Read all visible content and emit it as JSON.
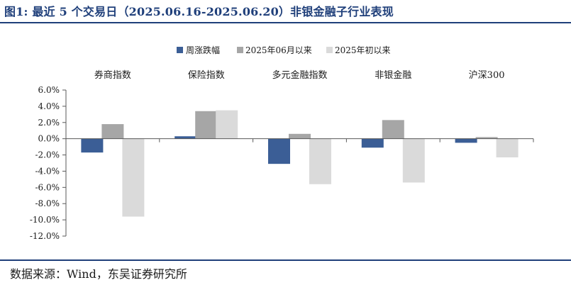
{
  "title": "图1:  最近 5 个交易日（2025.06.16-2025.06.20）非银金融子行业表现",
  "source": "数据来源：Wind，东吴证券研究所",
  "chart_data": {
    "type": "bar",
    "categories": [
      "券商指数",
      "保险指数",
      "多元金融指数",
      "非银金融",
      "沪深300"
    ],
    "series": [
      {
        "name": "周涨跌幅",
        "color": "#3b5e96",
        "values": [
          -1.7,
          0.3,
          -3.1,
          -1.1,
          -0.5
        ]
      },
      {
        "name": "2025年06月以来",
        "color": "#a6a6a6",
        "values": [
          1.8,
          3.4,
          0.6,
          2.3,
          0.2
        ]
      },
      {
        "name": "2025年初以来",
        "color": "#dadada",
        "values": [
          -9.6,
          3.5,
          -5.6,
          -5.4,
          -2.3
        ]
      }
    ],
    "ylim": [
      -12,
      6
    ],
    "yticks": [
      "6.0%",
      "4.0%",
      "2.0%",
      "0.0%",
      "-2.0%",
      "-4.0%",
      "-6.0%",
      "-8.0%",
      "-10.0%",
      "-12.0%"
    ],
    "ytick_values": [
      6,
      4,
      2,
      0,
      -2,
      -4,
      -6,
      -8,
      -10,
      -12
    ],
    "legend_position": "top-center",
    "grid": false
  }
}
